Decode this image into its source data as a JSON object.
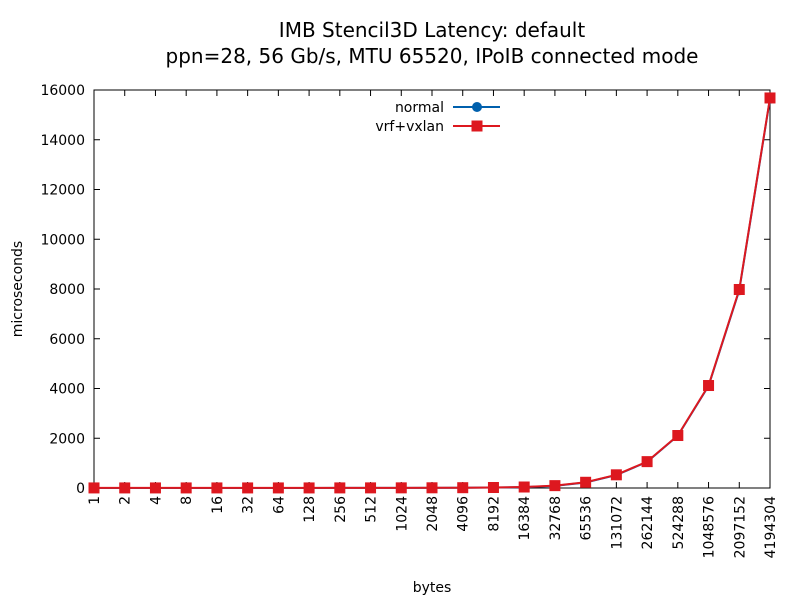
{
  "chart_data": {
    "type": "line",
    "title": "IMB Stencil3D Latency: default",
    "subtitle": "ppn=28, 56 Gb/s, MTU 65520, IPoIB connected mode",
    "xlabel": "bytes",
    "ylabel": "microseconds",
    "x_scale": "log2",
    "categories": [
      "1",
      "2",
      "4",
      "8",
      "16",
      "32",
      "64",
      "128",
      "256",
      "512",
      "1024",
      "2048",
      "4096",
      "8192",
      "16384",
      "32768",
      "65536",
      "131072",
      "262144",
      "524288",
      "1048576",
      "2097152",
      "4194304"
    ],
    "ylim": [
      0,
      16000
    ],
    "yticks": [
      0,
      2000,
      4000,
      6000,
      8000,
      10000,
      12000,
      14000,
      16000
    ],
    "ytick_labels": [
      "0",
      "2000",
      "4000",
      "6000",
      "8000",
      "10000",
      "12000",
      "14000",
      "16000"
    ],
    "grid": false,
    "legend_position": "top-center",
    "series": [
      {
        "name": "normal",
        "color": "#0060ad",
        "marker": "circle",
        "values": [
          2,
          2,
          2,
          2,
          2,
          2,
          2,
          2,
          3,
          4,
          5,
          7,
          10,
          18,
          35,
          85,
          220,
          520,
          1050,
          2100,
          4100,
          7950,
          15650
        ]
      },
      {
        "name": "vrf+vxlan",
        "color": "#dd181f",
        "marker": "square",
        "values": [
          3,
          3,
          3,
          3,
          3,
          3,
          3,
          3,
          4,
          5,
          6,
          8,
          12,
          20,
          40,
          95,
          230,
          530,
          1060,
          2110,
          4120,
          7980,
          15680
        ]
      }
    ]
  }
}
